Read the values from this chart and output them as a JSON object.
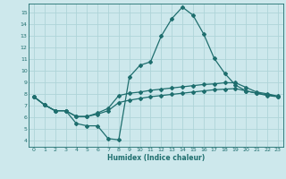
{
  "xlabel": "Humidex (Indice chaleur)",
  "background_color": "#cde8ec",
  "grid_color": "#aed4d8",
  "line_color": "#1e6e6e",
  "xlim": [
    -0.5,
    23.5
  ],
  "ylim": [
    3.5,
    15.8
  ],
  "yticks": [
    4,
    5,
    6,
    7,
    8,
    9,
    10,
    11,
    12,
    13,
    14,
    15
  ],
  "xticks": [
    0,
    1,
    2,
    3,
    4,
    5,
    6,
    7,
    8,
    9,
    10,
    11,
    12,
    13,
    14,
    15,
    16,
    17,
    18,
    19,
    20,
    21,
    22,
    23
  ],
  "line1_x": [
    0,
    1,
    2,
    3,
    4,
    5,
    6,
    7,
    8,
    9,
    10,
    11,
    12,
    13,
    14,
    15,
    16,
    17,
    18,
    19,
    20,
    21,
    22,
    23
  ],
  "line1_y": [
    7.8,
    7.1,
    6.6,
    6.6,
    5.5,
    5.3,
    5.3,
    4.2,
    4.1,
    9.5,
    10.5,
    10.8,
    13.0,
    14.5,
    15.5,
    14.8,
    13.2,
    11.1,
    9.8,
    8.8,
    8.3,
    8.1,
    7.9,
    7.8
  ],
  "line2_x": [
    0,
    1,
    2,
    3,
    4,
    5,
    6,
    7,
    8,
    9,
    10,
    11,
    12,
    13,
    14,
    15,
    16,
    17,
    18,
    19,
    20,
    21,
    22,
    23
  ],
  "line2_y": [
    7.8,
    7.1,
    6.6,
    6.6,
    6.1,
    6.1,
    6.4,
    6.8,
    7.9,
    8.1,
    8.2,
    8.35,
    8.45,
    8.55,
    8.65,
    8.75,
    8.85,
    8.9,
    9.0,
    9.0,
    8.6,
    8.2,
    8.05,
    7.85
  ],
  "line3_x": [
    0,
    1,
    2,
    3,
    4,
    5,
    6,
    7,
    8,
    9,
    10,
    11,
    12,
    13,
    14,
    15,
    16,
    17,
    18,
    19,
    20,
    21,
    22,
    23
  ],
  "line3_y": [
    7.8,
    7.1,
    6.6,
    6.6,
    6.1,
    6.1,
    6.3,
    6.6,
    7.3,
    7.5,
    7.65,
    7.8,
    7.9,
    8.0,
    8.1,
    8.2,
    8.3,
    8.4,
    8.45,
    8.5,
    8.3,
    8.1,
    7.98,
    7.82
  ]
}
